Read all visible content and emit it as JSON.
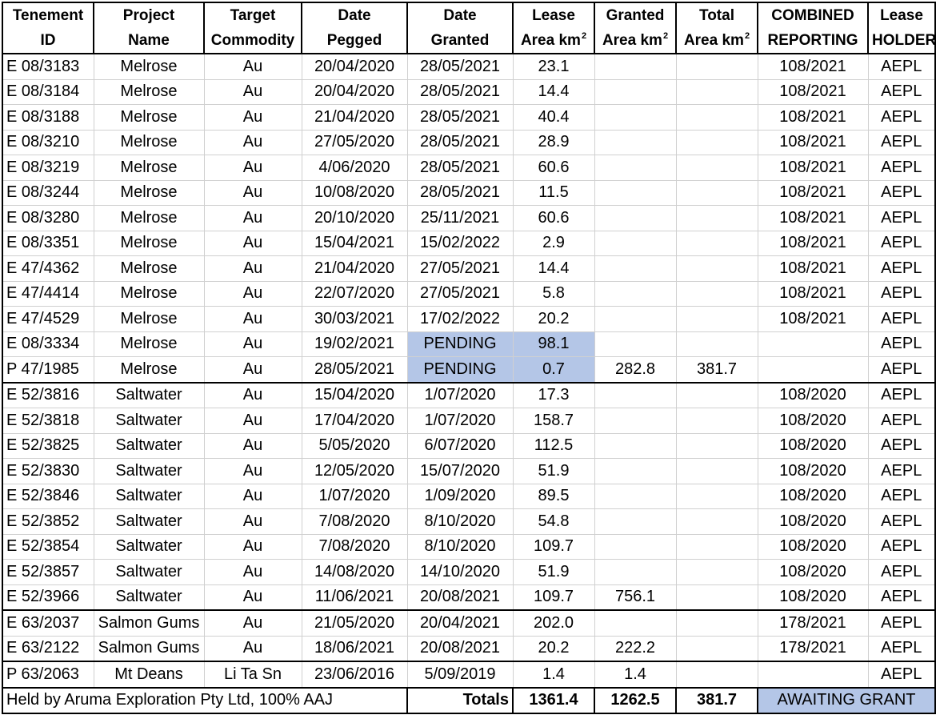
{
  "header": {
    "top": [
      "Tenement",
      "Project",
      "Target",
      "Date",
      "Date",
      "Lease",
      "Granted",
      "Total",
      "COMBINED",
      "Lease"
    ],
    "bottom": [
      "ID",
      "Name",
      "Commodity",
      "Pegged",
      "Granted",
      "Area km",
      "Area km",
      "Area km",
      "REPORTING",
      "HOLDER"
    ],
    "unit_superscript": "2"
  },
  "rows": [
    [
      "E 08/3183",
      "Melrose",
      "Au",
      "20/04/2020",
      "28/05/2021",
      "23.1",
      "",
      "",
      "108/2021",
      "AEPL"
    ],
    [
      "E 08/3184",
      "Melrose",
      "Au",
      "20/04/2020",
      "28/05/2021",
      "14.4",
      "",
      "",
      "108/2021",
      "AEPL"
    ],
    [
      "E 08/3188",
      "Melrose",
      "Au",
      "21/04/2020",
      "28/05/2021",
      "40.4",
      "",
      "",
      "108/2021",
      "AEPL"
    ],
    [
      "E 08/3210",
      "Melrose",
      "Au",
      "27/05/2020",
      "28/05/2021",
      "28.9",
      "",
      "",
      "108/2021",
      "AEPL"
    ],
    [
      "E 08/3219",
      "Melrose",
      "Au",
      "4/06/2020",
      "28/05/2021",
      "60.6",
      "",
      "",
      "108/2021",
      "AEPL"
    ],
    [
      "E 08/3244",
      "Melrose",
      "Au",
      "10/08/2020",
      "28/05/2021",
      "11.5",
      "",
      "",
      "108/2021",
      "AEPL"
    ],
    [
      "E 08/3280",
      "Melrose",
      "Au",
      "20/10/2020",
      "25/11/2021",
      "60.6",
      "",
      "",
      "108/2021",
      "AEPL"
    ],
    [
      "E 08/3351",
      "Melrose",
      "Au",
      "15/04/2021",
      "15/02/2022",
      "2.9",
      "",
      "",
      "108/2021",
      "AEPL"
    ],
    [
      "E 47/4362",
      "Melrose",
      "Au",
      "21/04/2020",
      "27/05/2021",
      "14.4",
      "",
      "",
      "108/2021",
      "AEPL"
    ],
    [
      "E 47/4414",
      "Melrose",
      "Au",
      "22/07/2020",
      "27/05/2021",
      "5.8",
      "",
      "",
      "108/2021",
      "AEPL"
    ],
    [
      "E 47/4529",
      "Melrose",
      "Au",
      "30/03/2021",
      "17/02/2022",
      "20.2",
      "",
      "",
      "108/2021",
      "AEPL"
    ],
    [
      "E 08/3334",
      "Melrose",
      "Au",
      "19/02/2021",
      "PENDING",
      "98.1",
      "",
      "",
      "",
      "AEPL"
    ],
    [
      "P 47/1985",
      "Melrose",
      "Au",
      "28/05/2021",
      "PENDING",
      "0.7",
      "282.8",
      "381.7",
      "",
      "AEPL"
    ],
    [
      "E 52/3816",
      "Saltwater",
      "Au",
      "15/04/2020",
      "1/07/2020",
      "17.3",
      "",
      "",
      "108/2020",
      "AEPL"
    ],
    [
      "E 52/3818",
      "Saltwater",
      "Au",
      "17/04/2020",
      "1/07/2020",
      "158.7",
      "",
      "",
      "108/2020",
      "AEPL"
    ],
    [
      "E 52/3825",
      "Saltwater",
      "Au",
      "5/05/2020",
      "6/07/2020",
      "112.5",
      "",
      "",
      "108/2020",
      "AEPL"
    ],
    [
      "E 52/3830",
      "Saltwater",
      "Au",
      "12/05/2020",
      "15/07/2020",
      "51.9",
      "",
      "",
      "108/2020",
      "AEPL"
    ],
    [
      "E 52/3846",
      "Saltwater",
      "Au",
      "1/07/2020",
      "1/09/2020",
      "89.5",
      "",
      "",
      "108/2020",
      "AEPL"
    ],
    [
      "E 52/3852",
      "Saltwater",
      "Au",
      "7/08/2020",
      "8/10/2020",
      "54.8",
      "",
      "",
      "108/2020",
      "AEPL"
    ],
    [
      "E 52/3854",
      "Saltwater",
      "Au",
      "7/08/2020",
      "8/10/2020",
      "109.7",
      "",
      "",
      "108/2020",
      "AEPL"
    ],
    [
      "E 52/3857",
      "Saltwater",
      "Au",
      "14/08/2020",
      "14/10/2020",
      "51.9",
      "",
      "",
      "108/2020",
      "AEPL"
    ],
    [
      "E 52/3966",
      "Saltwater",
      "Au",
      "11/06/2021",
      "20/08/2021",
      "109.7",
      "756.1",
      "",
      "108/2020",
      "AEPL"
    ],
    [
      "E 63/2037",
      "Salmon Gums",
      "Au",
      "21/05/2020",
      "20/04/2021",
      "202.0",
      "",
      "",
      "178/2021",
      "AEPL"
    ],
    [
      "E 63/2122",
      "Salmon Gums",
      "Au",
      "18/06/2021",
      "20/08/2021",
      "20.2",
      "222.2",
      "",
      "178/2021",
      "AEPL"
    ],
    [
      "P 63/2063",
      "Mt Deans",
      "Li Ta Sn",
      "23/06/2016",
      "5/09/2019",
      "1.4",
      "1.4",
      "",
      "",
      "AEPL"
    ]
  ],
  "highlight_color": "#b4c6e7",
  "footer": {
    "note": "Held by Aruma Exploration Pty Ltd, 100% AAJ",
    "totals_label": "Totals",
    "lease_total": "1361.4",
    "granted_total": "1262.5",
    "area_total": "381.7",
    "status": "AWAITING GRANT"
  }
}
